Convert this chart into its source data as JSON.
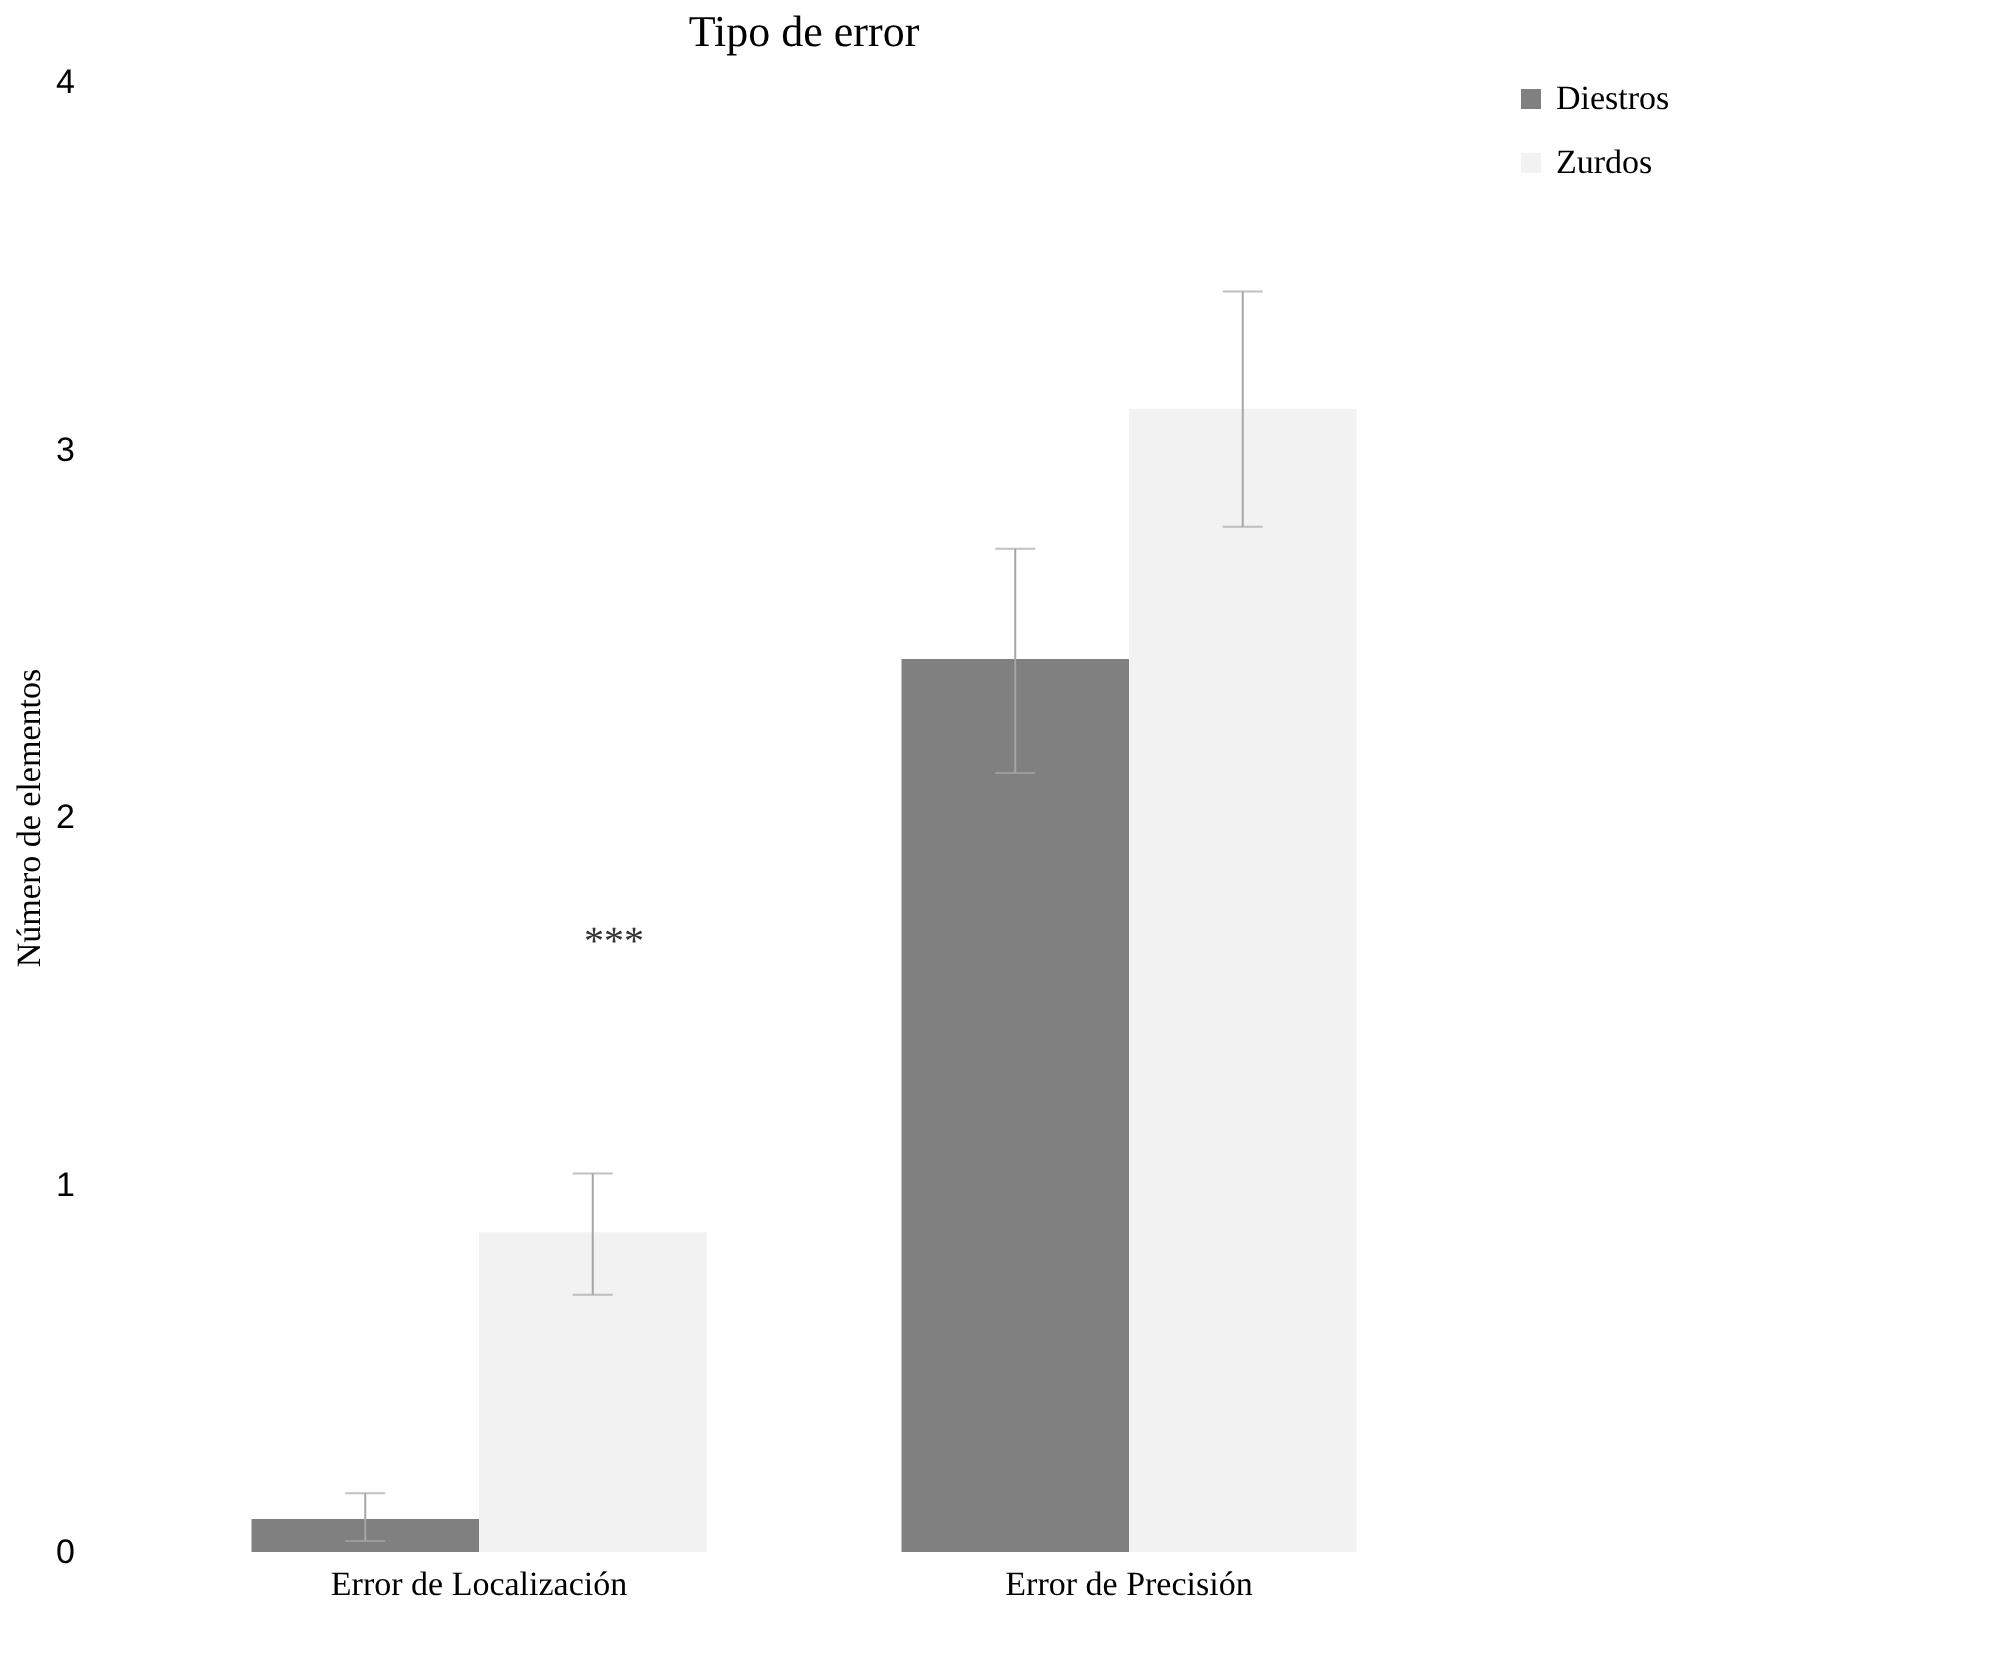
{
  "chart_data": {
    "type": "bar",
    "title": "Tipo de error",
    "ylabel": "Número de elementos",
    "categories": [
      "Error de Localización",
      "Error de Precisión"
    ],
    "series": [
      {
        "name": "Diestros",
        "color": "#808080",
        "values": [
          0.09,
          2.43
        ],
        "errors": [
          [
            0.03,
            0.16
          ],
          [
            2.12,
            2.73
          ]
        ]
      },
      {
        "name": "Zurdos",
        "color": "#f2f2f2",
        "values": [
          0.87,
          3.11
        ],
        "errors": [
          [
            0.7,
            1.03
          ],
          [
            2.79,
            3.43
          ]
        ]
      }
    ],
    "ylim": [
      0,
      4
    ],
    "yticks": [
      0,
      1,
      2,
      3,
      4
    ],
    "grid": false,
    "legend": "right",
    "annotations": [
      "***"
    ]
  }
}
